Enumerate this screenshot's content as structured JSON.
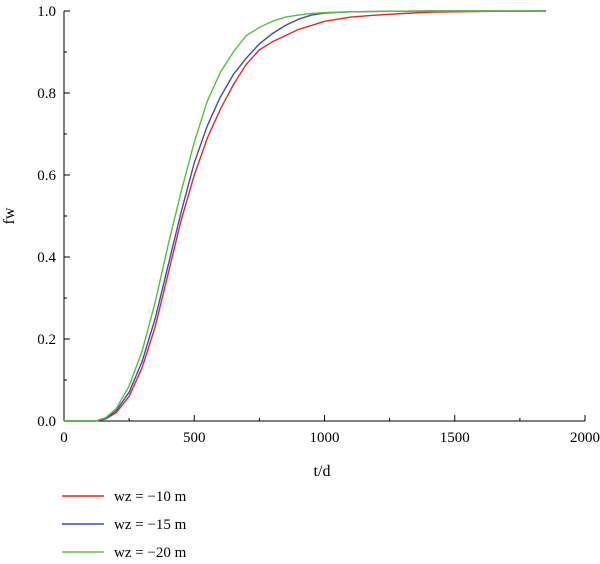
{
  "chart_data": {
    "type": "line",
    "title": "",
    "xlabel": "t/d",
    "ylabel": "fw",
    "xlim": [
      0,
      2000
    ],
    "ylim": [
      0,
      1.0
    ],
    "xticks": [
      "0",
      "500",
      "1000",
      "1500",
      "2000"
    ],
    "yticks": [
      "0.0",
      "0.2",
      "0.4",
      "0.6",
      "0.8",
      "1.0"
    ],
    "grid": false,
    "legend_position": "bottom-left",
    "series": [
      {
        "name": "wz = −10 m",
        "color": "#e8281e",
        "x": [
          0,
          120,
          160,
          200,
          250,
          300,
          350,
          400,
          450,
          500,
          550,
          600,
          650,
          700,
          750,
          800,
          850,
          900,
          950,
          1000,
          1100,
          1200,
          1300,
          1400,
          1500,
          1600,
          1700,
          1850
        ],
        "y": [
          0,
          0.0,
          0.005,
          0.02,
          0.06,
          0.13,
          0.23,
          0.36,
          0.49,
          0.6,
          0.69,
          0.76,
          0.82,
          0.87,
          0.905,
          0.925,
          0.94,
          0.955,
          0.965,
          0.975,
          0.985,
          0.99,
          0.994,
          0.997,
          0.998,
          0.999,
          0.9995,
          1.0
        ]
      },
      {
        "name": "wz = −15 m",
        "color": "#3a4cc0",
        "x": [
          0,
          120,
          160,
          200,
          250,
          300,
          350,
          400,
          450,
          500,
          550,
          600,
          650,
          700,
          750,
          800,
          850,
          900,
          950,
          1000,
          1100,
          1200,
          1300,
          1400,
          1500,
          1600,
          1700,
          1850
        ],
        "y": [
          0,
          0.0,
          0.006,
          0.025,
          0.07,
          0.145,
          0.25,
          0.38,
          0.51,
          0.63,
          0.72,
          0.79,
          0.845,
          0.885,
          0.92,
          0.945,
          0.965,
          0.98,
          0.99,
          0.995,
          0.998,
          0.999,
          0.9995,
          1.0,
          1.0,
          1.0,
          1.0,
          1.0
        ]
      },
      {
        "name": "wz = −20 m",
        "color": "#58c03a",
        "x": [
          0,
          120,
          160,
          200,
          250,
          300,
          350,
          400,
          450,
          500,
          550,
          600,
          650,
          700,
          750,
          800,
          850,
          900,
          950,
          1000,
          1100,
          1200,
          1300,
          1400,
          1500,
          1600,
          1700,
          1850
        ],
        "y": [
          0,
          0.0,
          0.008,
          0.03,
          0.085,
          0.17,
          0.29,
          0.43,
          0.56,
          0.68,
          0.78,
          0.85,
          0.9,
          0.94,
          0.96,
          0.975,
          0.985,
          0.99,
          0.994,
          0.996,
          0.998,
          0.999,
          0.9995,
          1.0,
          1.0,
          1.0,
          1.0,
          1.0
        ]
      }
    ]
  }
}
